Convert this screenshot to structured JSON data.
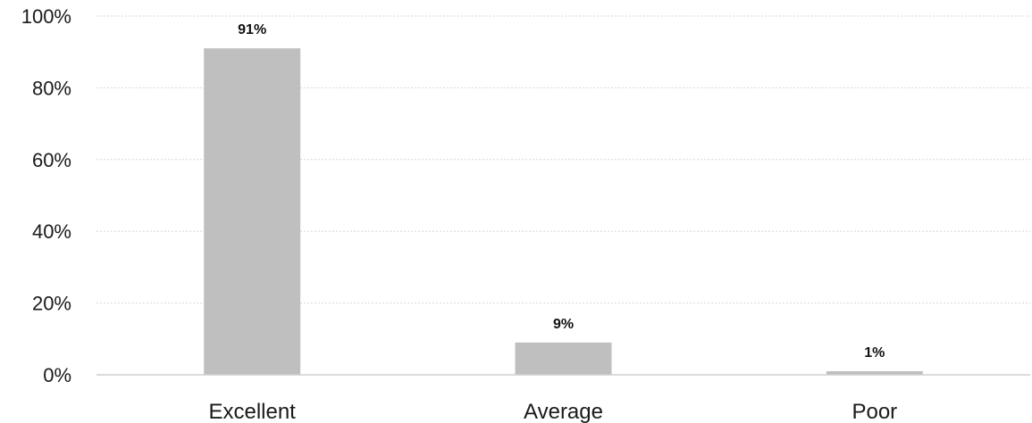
{
  "chart_data": {
    "type": "bar",
    "categories": [
      "Excellent",
      "Average",
      "Poor"
    ],
    "values": [
      91,
      9,
      1
    ],
    "data_labels": [
      "91%",
      "9%",
      "1%"
    ],
    "ylim": [
      0,
      100
    ],
    "yticks": [
      0,
      20,
      40,
      60,
      80,
      100
    ],
    "ytick_labels": [
      "0%",
      "20%",
      "40%",
      "60%",
      "80%",
      "100%"
    ],
    "grid": true,
    "legend": "none",
    "bar_color": "#bfbfbf"
  }
}
